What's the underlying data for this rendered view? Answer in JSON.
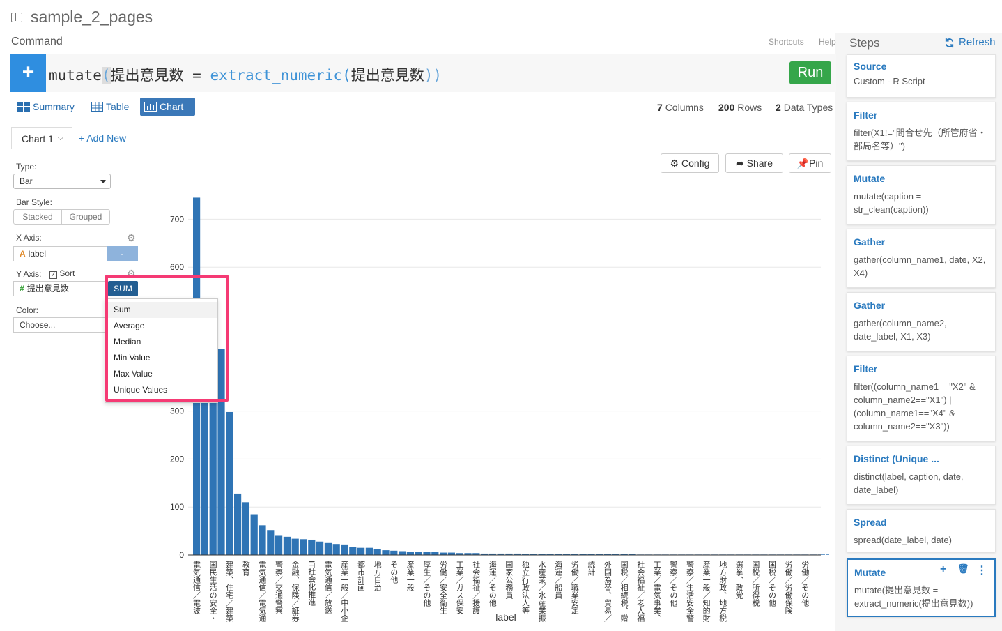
{
  "app": {
    "project_title": "sample_2_pages",
    "command_label": "Command",
    "shortcuts": "Shortcuts",
    "help": "Help",
    "steps_label": "Steps",
    "refresh": "Refresh"
  },
  "editor": {
    "plus": "+",
    "fn": "mutate",
    "open": "(",
    "col": "提出意見数",
    "eq": " = ",
    "fn2": "extract_numeric",
    "open2": "(",
    "col2": "提出意見数",
    "close": "))",
    "run": "Run"
  },
  "view_tabs": [
    {
      "label": "Summary",
      "icon": "summary-icon"
    },
    {
      "label": "Table",
      "icon": "table-icon"
    },
    {
      "label": "Chart",
      "icon": "chart-icon"
    }
  ],
  "stats": {
    "columns_n": "7",
    "columns": "Columns",
    "rows_n": "200",
    "rows": "Rows",
    "types_n": "2",
    "types": "Data Types"
  },
  "chart_tab": {
    "label": "Chart 1",
    "add_new": "+ Add New"
  },
  "toolbar": {
    "config": "Config",
    "share": "Share",
    "pin": "Pin"
  },
  "settings": {
    "type_label": "Type:",
    "type_value": "Bar",
    "bar_style_label": "Bar Style:",
    "stacked": "Stacked",
    "grouped": "Grouped",
    "x_axis_label": "X Axis:",
    "x_field": "label",
    "x_btn": "-",
    "y_axis_label": "Y Axis:",
    "sort_label": "Sort",
    "y_field": "提出意見数",
    "y_agg": "SUM",
    "color_label": "Color:",
    "color_value": "Choose..."
  },
  "agg_menu": [
    "Sum",
    "Average",
    "Median",
    "Min Value",
    "Max Value",
    "Unique Values"
  ],
  "steps": [
    {
      "title": "Source",
      "desc": "Custom - R Script"
    },
    {
      "title": "Filter",
      "desc": "filter(X1!=\"問合せ先（所管府省・部局名等）\")"
    },
    {
      "title": "Mutate",
      "desc": "mutate(caption = str_clean(caption))"
    },
    {
      "title": "Gather",
      "desc": "gather(column_name1, date, X2, X4)"
    },
    {
      "title": "Gather",
      "desc": "gather(column_name2, date_label, X1, X3)"
    },
    {
      "title": "Filter",
      "desc": "filter((column_name1==\"X2\" & column_name2==\"X1\") | (column_name1==\"X4\" & column_name2==\"X3\"))"
    },
    {
      "title": "Distinct (Unique ...",
      "desc": "distinct(label, caption, date, date_label)"
    },
    {
      "title": "Spread",
      "desc": "spread(date_label, date)"
    },
    {
      "title": "Mutate",
      "desc": "mutate(提出意見数 = extract_numeric(提出意見数))"
    }
  ],
  "chart_data": {
    "type": "bar",
    "xlabel": "label",
    "ylabel": "",
    "ylim": [
      0,
      750
    ],
    "yticks": [
      0,
      100,
      200,
      300,
      600,
      700
    ],
    "color": "#2f74b5",
    "values": [
      745,
      520,
      480,
      430,
      298,
      128,
      110,
      85,
      62,
      52,
      40,
      38,
      34,
      33,
      32,
      28,
      25,
      23,
      22,
      16,
      15,
      15,
      12,
      10,
      9,
      8,
      7,
      7,
      6,
      6,
      5,
      5,
      4,
      4,
      4,
      3,
      3,
      3,
      3,
      3,
      2,
      2,
      2,
      2,
      2,
      2,
      2,
      2,
      2,
      2,
      2,
      2,
      2,
      2,
      1,
      1,
      1,
      1,
      1,
      1,
      1,
      1,
      1,
      1,
      1,
      1,
      1,
      1,
      1,
      1,
      1,
      1,
      1,
      1,
      1,
      1,
      1,
      1
    ],
    "tick_labels": [
      "電気通信／電波",
      "国民生活の安全・",
      "建築、住宅／建築",
      "教育",
      "電気通信／電気通",
      "警察／交通警察",
      "金融、保険／証券",
      "IT社会化推進",
      "電気通信／放送",
      "産業一般／中小企",
      "都市計画",
      "地方自治",
      "その他",
      "産業一般",
      "厚生／その他",
      "労働／安全衛生",
      "工業／ガス保安",
      "社会福祉／援護",
      "海運／その他",
      "国家公務員",
      "独立行政法人等",
      "水産業／水産業振",
      "海運／船員",
      "労働／職業安定",
      "統計",
      "外国為替、貿易／",
      "国税／相続税、贈",
      "社会福祉／老人福",
      "工業／電気事業、",
      "警察／その他",
      "警察／生活安全警",
      "産業一般／知的財",
      "地方財政、地方税",
      "選挙、政党",
      "国税／所得税",
      "国税／その他",
      "労働／労働保険",
      "労働／その他"
    ]
  }
}
